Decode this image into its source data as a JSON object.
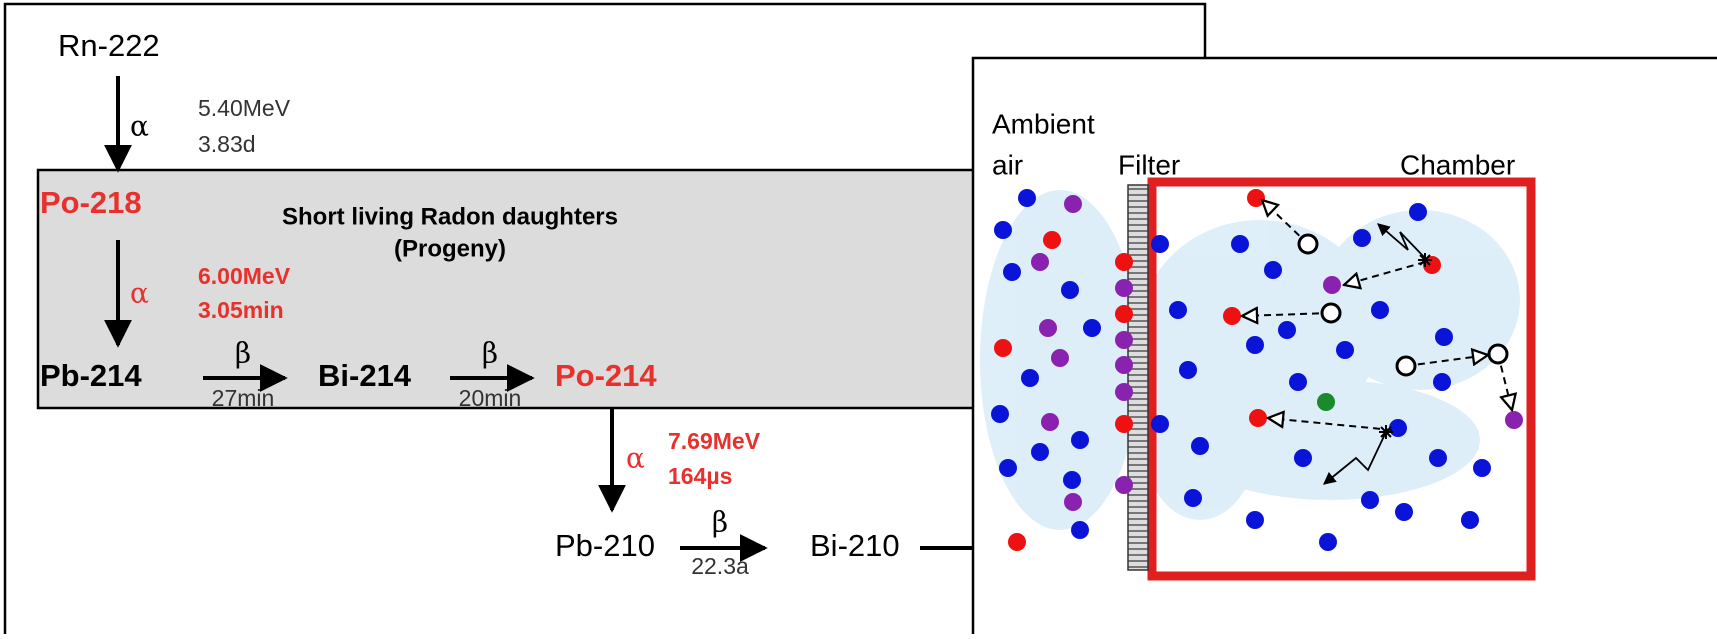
{
  "chain": {
    "rn222": "Rn-222",
    "t1": {
      "symbol": "α",
      "energy": "5.40MeV",
      "halflife": "3.83d"
    },
    "po218": "Po-218",
    "box_title": "Short living Radon daughters",
    "box_subtitle": "(Progeny)",
    "t2": {
      "symbol": "α",
      "energy": "6.00MeV",
      "halflife": "3.05min"
    },
    "pb214": "Pb-214",
    "t3": {
      "symbol": "β",
      "halflife": "27min"
    },
    "bi214": "Bi-214",
    "t4": {
      "symbol": "β",
      "halflife": "20min"
    },
    "po214": "Po-214",
    "t5": {
      "symbol": "α",
      "energy": "7.69MeV",
      "halflife": "164µs"
    },
    "pb210": "Pb-210",
    "t6": {
      "symbol": "β",
      "halflife": "22.3a"
    },
    "bi210": "Bi-210"
  },
  "panel": {
    "ambient": "Ambient",
    "air": "air",
    "filter": "Filter",
    "chamber": "Chamber"
  }
}
